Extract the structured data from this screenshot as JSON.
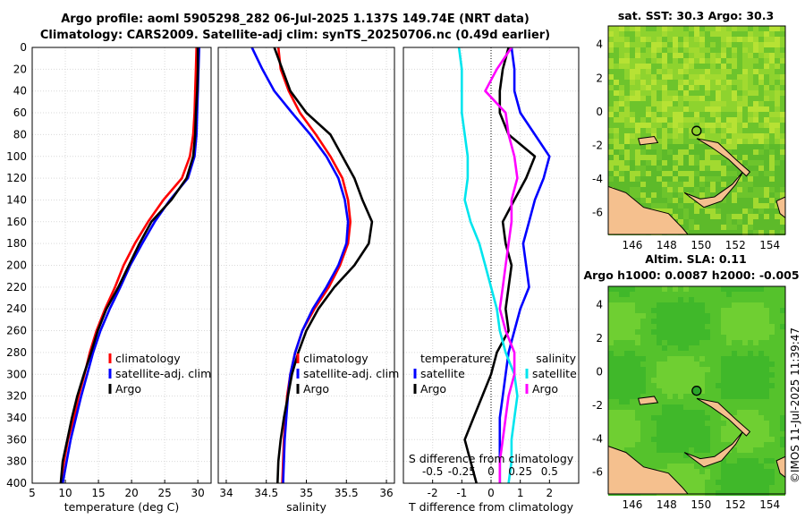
{
  "header": {
    "line1": "Argo profile: aoml 5905298_282 06-Jul-2025 1.137S 149.74E (NRT data)",
    "line2": "Climatology: CARS2009. Satellite-adj clim: synTS_20250706.nc (0.49d earlier)"
  },
  "colors": {
    "climatology": "#ff0000",
    "satellite": "#0000ff",
    "argo": "#000000",
    "sal_satellite": "#00e5ee",
    "sal_argo": "#ff00ff",
    "land": "#f5c08e"
  },
  "watermark": "©IMOS 11-Jul-2025 11:39:47",
  "chart_data": [
    {
      "id": "temperature_profile",
      "type": "line",
      "xlabel": "temperature (deg C)",
      "xlim": [
        5,
        32
      ],
      "ylim": [
        400,
        0
      ],
      "xticks": [
        "5",
        "10",
        "15",
        "20",
        "25",
        "30"
      ],
      "yticks": [
        "0",
        "20",
        "40",
        "60",
        "80",
        "100",
        "120",
        "140",
        "160",
        "180",
        "200",
        "220",
        "240",
        "260",
        "280",
        "300",
        "320",
        "340",
        "360",
        "380",
        "400"
      ],
      "legend": [
        "climatology",
        "satellite-adj. clim",
        "Argo"
      ],
      "series": [
        {
          "name": "climatology",
          "color": "#ff0000",
          "x": [
            29.8,
            29.7,
            29.6,
            29.5,
            29.3,
            28.8,
            27.6,
            24.8,
            22.5,
            20.5,
            18.8,
            17.5,
            16.0,
            14.7,
            13.7,
            12.9,
            12.0,
            11.3,
            10.4,
            9.8,
            9.3
          ],
          "y": [
            0,
            20,
            40,
            60,
            80,
            100,
            120,
            140,
            160,
            180,
            200,
            220,
            240,
            260,
            280,
            300,
            320,
            340,
            360,
            380,
            400
          ]
        },
        {
          "name": "satellite-adj. clim",
          "color": "#0000ff",
          "x": [
            30.2,
            30.1,
            30.0,
            29.9,
            29.8,
            29.5,
            28.5,
            25.8,
            23.5,
            21.6,
            19.8,
            18.3,
            16.7,
            15.3,
            14.2,
            13.3,
            12.4,
            11.6,
            10.8,
            10.2,
            9.6
          ],
          "y": [
            0,
            20,
            40,
            60,
            80,
            100,
            120,
            140,
            160,
            180,
            200,
            220,
            240,
            260,
            280,
            300,
            320,
            340,
            360,
            380,
            400
          ]
        },
        {
          "name": "Argo",
          "color": "#000000",
          "x": [
            30.0,
            30.0,
            29.9,
            29.7,
            29.6,
            29.3,
            28.3,
            26.0,
            23.0,
            21.2,
            19.6,
            18.0,
            16.2,
            14.9,
            13.9,
            12.8,
            11.8,
            11.0,
            10.3,
            9.6,
            9.3
          ],
          "y": [
            0,
            20,
            40,
            60,
            80,
            100,
            120,
            140,
            160,
            180,
            200,
            220,
            240,
            260,
            280,
            300,
            320,
            340,
            360,
            380,
            400
          ]
        }
      ]
    },
    {
      "id": "salinity_profile",
      "type": "line",
      "xlabel": "salinity",
      "xlim": [
        33.9,
        36.1
      ],
      "ylim": [
        400,
        0
      ],
      "xticks": [
        "34",
        "34.5",
        "35",
        "35.5",
        "36"
      ],
      "legend": [
        "climatology",
        "satellite-adj. clim",
        "Argo"
      ],
      "series": [
        {
          "name": "climatology",
          "color": "#ff0000",
          "x": [
            34.65,
            34.68,
            34.78,
            34.92,
            35.12,
            35.3,
            35.45,
            35.52,
            35.55,
            35.52,
            35.42,
            35.28,
            35.1,
            34.95,
            34.86,
            34.8,
            34.76,
            34.74,
            34.72,
            34.71,
            34.7
          ],
          "y": [
            0,
            20,
            40,
            60,
            80,
            100,
            120,
            140,
            160,
            180,
            200,
            220,
            240,
            260,
            280,
            300,
            320,
            340,
            360,
            380,
            400
          ]
        },
        {
          "name": "satellite-adj. clim",
          "color": "#0000ff",
          "x": [
            34.32,
            34.45,
            34.6,
            34.82,
            35.05,
            35.25,
            35.4,
            35.48,
            35.52,
            35.5,
            35.4,
            35.25,
            35.08,
            34.95,
            34.86,
            34.8,
            34.77,
            34.75,
            34.73,
            34.72,
            34.71
          ],
          "y": [
            0,
            20,
            40,
            60,
            80,
            100,
            120,
            140,
            160,
            180,
            200,
            220,
            240,
            260,
            280,
            300,
            320,
            340,
            360,
            380,
            400
          ]
        },
        {
          "name": "Argo",
          "color": "#000000",
          "x": [
            34.6,
            34.7,
            34.8,
            35.0,
            35.3,
            35.45,
            35.6,
            35.7,
            35.82,
            35.78,
            35.6,
            35.35,
            35.15,
            35.0,
            34.9,
            34.82,
            34.77,
            34.72,
            34.68,
            34.65,
            34.64
          ],
          "y": [
            0,
            20,
            40,
            60,
            80,
            100,
            120,
            140,
            160,
            180,
            200,
            220,
            240,
            260,
            280,
            300,
            320,
            340,
            360,
            380,
            400
          ]
        }
      ]
    },
    {
      "id": "difference_profile",
      "type": "line",
      "xlabel": "T difference from climatology",
      "xlabel2": "S difference from climatology",
      "xlim": [
        -3,
        3
      ],
      "ylim": [
        400,
        0
      ],
      "xticks": [
        "-2",
        "-1",
        "0",
        "1",
        "2"
      ],
      "xticks2": [
        "-0.5",
        "-0.25",
        "0",
        "0.25",
        "0.5"
      ],
      "legend_temperature_title": "temperature",
      "legend_salinity_title": "salinity",
      "legend_temperature": [
        "satellite",
        "Argo"
      ],
      "legend_salinity": [
        "satellite",
        "Argo"
      ],
      "series": [
        {
          "name": "T satellite",
          "color": "#0000ff",
          "x": [
            0.7,
            0.8,
            0.8,
            1.0,
            1.5,
            2.0,
            1.8,
            1.5,
            1.3,
            1.1,
            1.2,
            1.3,
            1.0,
            0.8,
            0.6,
            0.5,
            0.4,
            0.3,
            0.3,
            0.3,
            0.3
          ],
          "y": [
            0,
            20,
            40,
            60,
            80,
            100,
            120,
            140,
            160,
            180,
            200,
            220,
            240,
            260,
            280,
            300,
            320,
            340,
            360,
            380,
            400
          ]
        },
        {
          "name": "T Argo",
          "color": "#000000",
          "x": [
            0.6,
            0.4,
            0.3,
            0.3,
            0.6,
            1.5,
            1.2,
            0.8,
            0.4,
            0.5,
            0.7,
            0.6,
            0.5,
            0.6,
            0.2,
            0.0,
            -0.3,
            -0.6,
            -0.9,
            -0.7,
            -0.5
          ],
          "y": [
            0,
            20,
            40,
            60,
            80,
            100,
            120,
            140,
            160,
            180,
            200,
            220,
            240,
            260,
            280,
            300,
            320,
            340,
            360,
            380,
            400
          ]
        },
        {
          "name": "S satellite",
          "color": "#00e5ee",
          "x": [
            -1.1,
            -1.0,
            -1.0,
            -1.0,
            -0.9,
            -0.8,
            -0.8,
            -0.9,
            -0.7,
            -0.4,
            -0.2,
            0.0,
            0.2,
            0.3,
            0.5,
            0.8,
            0.9,
            0.8,
            0.7,
            0.7,
            0.6
          ],
          "y": [
            0,
            20,
            40,
            60,
            80,
            100,
            120,
            140,
            160,
            180,
            200,
            220,
            240,
            260,
            280,
            300,
            320,
            340,
            360,
            380,
            400
          ]
        },
        {
          "name": "S Argo",
          "color": "#ff00ff",
          "x": [
            0.7,
            0.2,
            -0.2,
            0.5,
            0.6,
            0.8,
            0.9,
            0.7,
            0.7,
            0.6,
            0.5,
            0.4,
            0.3,
            0.5,
            0.8,
            0.8,
            0.6,
            0.5,
            0.4,
            0.3,
            0.3
          ],
          "y": [
            0,
            20,
            40,
            60,
            80,
            100,
            120,
            140,
            160,
            180,
            200,
            220,
            240,
            260,
            280,
            300,
            320,
            340,
            360,
            380,
            400
          ]
        }
      ]
    },
    {
      "id": "sst_map",
      "type": "heatmap",
      "title": "sat. SST: 30.3 Argo: 30.3",
      "xlim": [
        144.6,
        154.9
      ],
      "ylim": [
        -7.3,
        5.1
      ],
      "xticks": [
        "146",
        "148",
        "150",
        "152",
        "154"
      ],
      "yticks": [
        "4",
        "2",
        "0",
        "-2",
        "-4",
        "-6"
      ],
      "argo_position": {
        "lon": 149.74,
        "lat": -1.137
      }
    },
    {
      "id": "sla_map",
      "type": "heatmap",
      "title": "Altim. SLA: 0.11",
      "subtitle": "Argo h1000: 0.0087 h2000: -0.005",
      "xlim": [
        144.6,
        154.9
      ],
      "ylim": [
        -7.3,
        5.1
      ],
      "xticks": [
        "146",
        "148",
        "150",
        "152",
        "154"
      ],
      "yticks": [
        "4",
        "2",
        "0",
        "-2",
        "-4",
        "-6"
      ],
      "argo_position": {
        "lon": 149.74,
        "lat": -1.137
      }
    }
  ]
}
